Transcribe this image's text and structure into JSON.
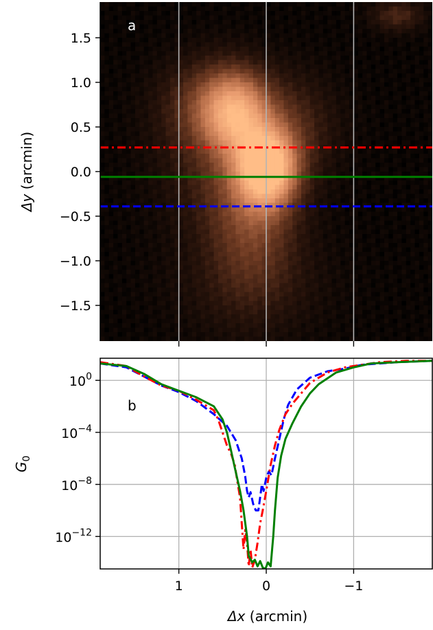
{
  "chart_data": [
    {
      "panel": "a",
      "type": "heatmap",
      "panel_label": "a",
      "xlim": [
        1.9,
        -1.9
      ],
      "ylim": [
        -1.9,
        1.9
      ],
      "ylabel_symbol": "Δy",
      "ylabel_unit": "(arcmin)",
      "yticks": [
        {
          "value": 1.5,
          "label": "1.5"
        },
        {
          "value": 1.0,
          "label": "1.0"
        },
        {
          "value": 0.5,
          "label": "0.5"
        },
        {
          "value": 0.0,
          "label": "0.0"
        },
        {
          "value": -0.5,
          "label": "−0.5"
        },
        {
          "value": -1.0,
          "label": "−1.0"
        },
        {
          "value": -1.5,
          "label": "−1.5"
        }
      ],
      "vertical_lines_x": [
        1,
        0,
        -1
      ],
      "horizontal_cuts": [
        {
          "y": 0.27,
          "style": "dashdot",
          "color": "#ff0000"
        },
        {
          "y": -0.06,
          "style": "solid",
          "color": "#008000"
        },
        {
          "y": -0.39,
          "style": "dashed",
          "color": "#0000ff"
        }
      ],
      "emission_blobs": [
        {
          "x": 0.0,
          "y": 0.05,
          "sx": 0.22,
          "sy": 0.28,
          "amp": 1.0
        },
        {
          "x": 0.35,
          "y": 0.65,
          "sx": 0.25,
          "sy": 0.3,
          "amp": 0.6
        },
        {
          "x": 0.6,
          "y": 0.75,
          "sx": 0.4,
          "sy": 0.35,
          "amp": 0.3
        },
        {
          "x": 0.15,
          "y": -0.5,
          "sx": 0.35,
          "sy": 0.55,
          "amp": 0.3
        },
        {
          "x": -0.3,
          "y": 0.5,
          "sx": 0.35,
          "sy": 0.4,
          "amp": 0.18
        },
        {
          "x": 0.5,
          "y": 0.0,
          "sx": 0.5,
          "sy": 0.5,
          "amp": 0.15
        },
        {
          "x": -1.5,
          "y": 1.75,
          "sx": 0.2,
          "sy": 0.12,
          "amp": 0.2
        },
        {
          "x": 0.2,
          "y": -1.3,
          "sx": 0.6,
          "sy": 0.4,
          "amp": 0.1
        }
      ],
      "colormap": [
        "#000000",
        "#2a140b",
        "#6e3a22",
        "#b9704b",
        "#e79a6e",
        "#ffbd87"
      ]
    },
    {
      "panel": "b",
      "type": "line",
      "panel_label": "b",
      "xlim": [
        1.9,
        -1.9
      ],
      "ylim_log10": [
        -14.5,
        1.7
      ],
      "xlabel_symbol": "Δx",
      "xlabel_unit": "(arcmin)",
      "ylabel_base": "G",
      "ylabel_sub": "0",
      "xticks": [
        {
          "value": 1,
          "label": "1"
        },
        {
          "value": 0,
          "label": "0"
        },
        {
          "value": -1,
          "label": "−1"
        }
      ],
      "yticks": [
        {
          "log10": 0,
          "base": "10",
          "exp": "0"
        },
        {
          "log10": -4,
          "base": "10",
          "exp": "−4"
        },
        {
          "log10": -8,
          "base": "10",
          "exp": "−8"
        },
        {
          "log10": -12,
          "base": "10",
          "exp": "−12"
        }
      ],
      "grid": true,
      "series": [
        {
          "color": "#0000ff",
          "style": "dashed",
          "points": [
            [
              1.9,
              1.3
            ],
            [
              1.6,
              1.0
            ],
            [
              1.4,
              0.3
            ],
            [
              1.2,
              -0.4
            ],
            [
              1.0,
              -0.9
            ],
            [
              0.8,
              -1.6
            ],
            [
              0.6,
              -2.6
            ],
            [
              0.45,
              -3.5
            ],
            [
              0.35,
              -4.6
            ],
            [
              0.28,
              -6.0
            ],
            [
              0.24,
              -7.4
            ],
            [
              0.22,
              -8.5
            ],
            [
              0.2,
              -9.0
            ],
            [
              0.18,
              -8.6
            ],
            [
              0.15,
              -9.5
            ],
            [
              0.12,
              -10.0
            ],
            [
              0.09,
              -10.0
            ],
            [
              0.07,
              -9.0
            ],
            [
              0.05,
              -8.0
            ],
            [
              0.03,
              -8.5
            ],
            [
              0.0,
              -7.5
            ],
            [
              -0.03,
              -7.0
            ],
            [
              -0.06,
              -7.3
            ],
            [
              -0.1,
              -6.0
            ],
            [
              -0.15,
              -4.5
            ],
            [
              -0.2,
              -3.0
            ],
            [
              -0.25,
              -1.9
            ],
            [
              -0.35,
              -0.7
            ],
            [
              -0.5,
              0.2
            ],
            [
              -0.7,
              0.7
            ],
            [
              -0.9,
              0.9
            ],
            [
              -1.1,
              1.2
            ],
            [
              -1.3,
              1.3
            ],
            [
              -1.5,
              1.4
            ],
            [
              -1.9,
              1.5
            ]
          ]
        },
        {
          "color": "#ff0000",
          "style": "dashdot",
          "points": [
            [
              1.9,
              1.4
            ],
            [
              1.6,
              1.1
            ],
            [
              1.4,
              0.3
            ],
            [
              1.2,
              -0.4
            ],
            [
              1.0,
              -0.8
            ],
            [
              0.8,
              -1.5
            ],
            [
              0.6,
              -2.3
            ],
            [
              0.55,
              -3.0
            ],
            [
              0.5,
              -4.0
            ],
            [
              0.45,
              -5.0
            ],
            [
              0.4,
              -5.7
            ],
            [
              0.36,
              -6.5
            ],
            [
              0.33,
              -7.8
            ],
            [
              0.3,
              -9.0
            ],
            [
              0.28,
              -11.0
            ],
            [
              0.26,
              -13.0
            ],
            [
              0.24,
              -11.5
            ],
            [
              0.22,
              -12.5
            ],
            [
              0.2,
              -14.3
            ],
            [
              0.18,
              -13.0
            ],
            [
              0.16,
              -14.4
            ],
            [
              0.13,
              -13.8
            ],
            [
              0.1,
              -12.5
            ],
            [
              0.07,
              -11.0
            ],
            [
              0.04,
              -10.0
            ],
            [
              0.0,
              -8.5
            ],
            [
              -0.05,
              -6.5
            ],
            [
              -0.1,
              -5.0
            ],
            [
              -0.15,
              -3.8
            ],
            [
              -0.22,
              -2.6
            ],
            [
              -0.3,
              -1.8
            ],
            [
              -0.4,
              -1.0
            ],
            [
              -0.5,
              -0.2
            ],
            [
              -0.7,
              0.6
            ],
            [
              -0.9,
              1.0
            ],
            [
              -1.1,
              1.2
            ],
            [
              -1.3,
              1.4
            ],
            [
              -1.6,
              1.5
            ],
            [
              -1.9,
              1.5
            ]
          ]
        },
        {
          "color": "#008000",
          "style": "solid",
          "points": [
            [
              1.9,
              1.3
            ],
            [
              1.6,
              1.1
            ],
            [
              1.4,
              0.5
            ],
            [
              1.2,
              -0.3
            ],
            [
              1.0,
              -0.8
            ],
            [
              0.8,
              -1.3
            ],
            [
              0.6,
              -2.0
            ],
            [
              0.55,
              -2.5
            ],
            [
              0.5,
              -3.0
            ],
            [
              0.45,
              -4.0
            ],
            [
              0.4,
              -5.5
            ],
            [
              0.35,
              -7.0
            ],
            [
              0.3,
              -8.5
            ],
            [
              0.26,
              -10.0
            ],
            [
              0.22,
              -12.0
            ],
            [
              0.2,
              -13.5
            ],
            [
              0.16,
              -14.0
            ],
            [
              0.13,
              -13.8
            ],
            [
              0.1,
              -14.3
            ],
            [
              0.07,
              -13.9
            ],
            [
              0.04,
              -14.4
            ],
            [
              0.01,
              -14.5
            ],
            [
              -0.02,
              -14.0
            ],
            [
              -0.05,
              -14.3
            ],
            [
              -0.08,
              -12.0
            ],
            [
              -0.1,
              -10.0
            ],
            [
              -0.13,
              -7.5
            ],
            [
              -0.17,
              -5.8
            ],
            [
              -0.22,
              -4.5
            ],
            [
              -0.3,
              -3.3
            ],
            [
              -0.4,
              -2.0
            ],
            [
              -0.5,
              -1.0
            ],
            [
              -0.6,
              -0.3
            ],
            [
              -0.8,
              0.6
            ],
            [
              -1.0,
              1.0
            ],
            [
              -1.2,
              1.3
            ],
            [
              -1.5,
              1.4
            ],
            [
              -1.9,
              1.5
            ]
          ]
        }
      ]
    }
  ]
}
